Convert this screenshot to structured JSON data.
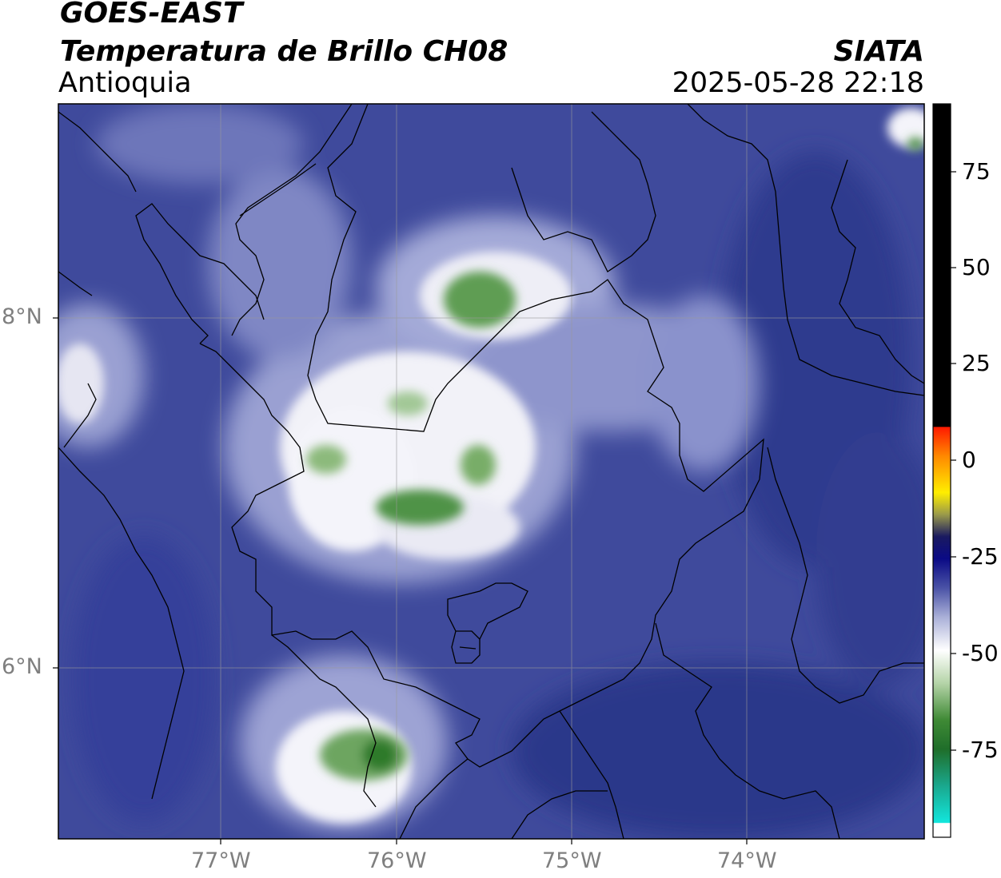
{
  "header": {
    "satellite": "GOES-EAST",
    "product": "Temperatura de Brillo CH08",
    "region": "Antioquia",
    "agency": "SIATA",
    "datetime": "2025-05-28 22:18"
  },
  "map": {
    "lat_labels": [
      "8°N",
      "6°N"
    ],
    "lon_labels": [
      "77°W",
      "76°W",
      "75°W",
      "74°W"
    ],
    "colors": {
      "background_blue": "#3d4898",
      "deep_blue": "#2b3a8c",
      "white_cloud": "#f4f4fa",
      "green_cold": "#5f9d52",
      "dark_green": "#2f7a2c",
      "border_line": "#000000",
      "grid_line": "#9a9a9a"
    }
  },
  "colorbar": {
    "tick_labels": [
      "75",
      "50",
      "25",
      "0",
      "-25",
      "-50",
      "-75"
    ],
    "colors": [
      "#000000",
      "#ff2a00",
      "#ffa500",
      "#ffff00",
      "#0a0a80",
      "#ffffff",
      "#2f7a2c",
      "#1de8d8"
    ]
  }
}
